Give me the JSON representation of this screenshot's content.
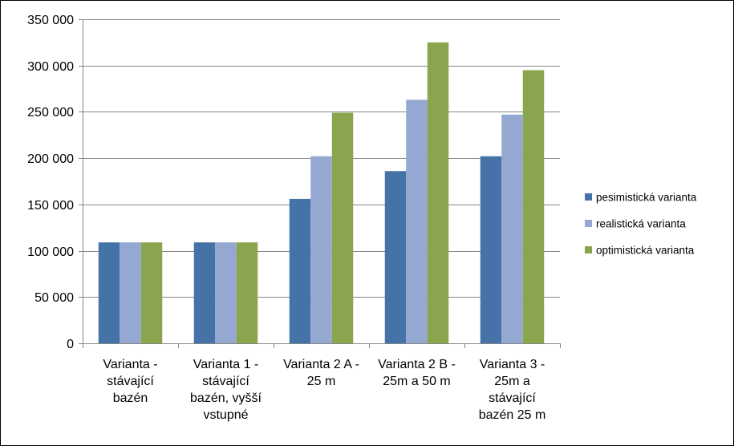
{
  "chart_data": {
    "type": "bar",
    "title": "",
    "xlabel": "",
    "ylabel": "",
    "ylim": [
      0,
      350000
    ],
    "y_ticks": [
      {
        "value": 0,
        "label": "0"
      },
      {
        "value": 50000,
        "label": "50 000"
      },
      {
        "value": 100000,
        "label": "100 000"
      },
      {
        "value": 150000,
        "label": "150 000"
      },
      {
        "value": 200000,
        "label": "200 000"
      },
      {
        "value": 250000,
        "label": "250 000"
      },
      {
        "value": 300000,
        "label": "300 000"
      },
      {
        "value": 350000,
        "label": "350 000"
      }
    ],
    "grid": true,
    "legend_position": "right",
    "categories": [
      [
        "Varianta -",
        "stávající",
        "bazén"
      ],
      [
        "Varianta 1 -",
        "stávající",
        "bazén, vyšší",
        "vstupné"
      ],
      [
        "Varianta 2 A -",
        "25 m"
      ],
      [
        "Varianta 2 B -",
        "25m a 50 m"
      ],
      [
        "Varianta 3 -",
        "25m a",
        "stávající",
        "bazén 25 m"
      ]
    ],
    "series": [
      {
        "name": "pesimistická varianta",
        "color": "#4572A7",
        "values": [
          109000,
          109000,
          156000,
          186000,
          202000
        ]
      },
      {
        "name": "realistická varianta",
        "color": "#94A8D2",
        "values": [
          109000,
          109000,
          202000,
          263000,
          247000
        ]
      },
      {
        "name": "optimistická varianta",
        "color": "#89A54E",
        "values": [
          109000,
          109000,
          249000,
          325000,
          295000
        ]
      }
    ]
  }
}
